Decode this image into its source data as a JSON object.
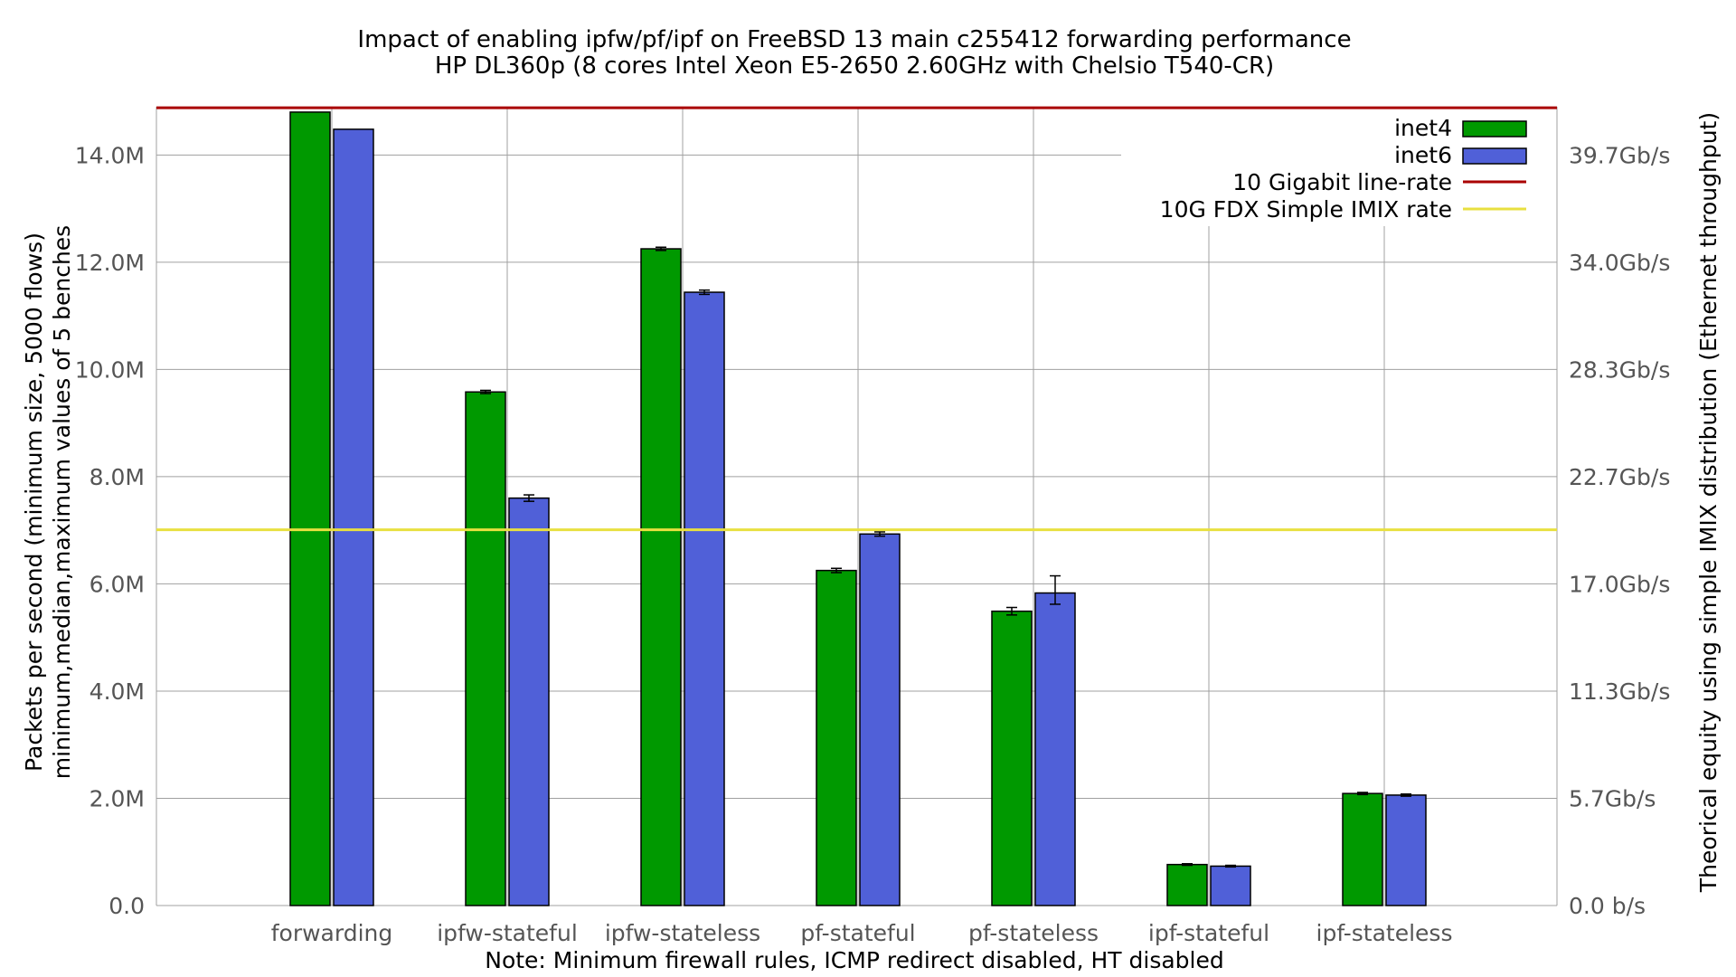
{
  "chart_data": {
    "type": "bar",
    "title": "Impact of enabling ipfw/pf/ipf on FreeBSD 13 main c255412 forwarding performance",
    "subtitle": "HP DL360p (8 cores Intel Xeon E5-2650 2.60GHz with Chelsio T540-CR)",
    "xlabel": "Note: Minimum firewall rules, ICMP redirect disabled, HT disabled",
    "ylabel": "Packets per second (minimum size, 5000 flows)",
    "ylabel2": "minimum,median,maximum values of 5 benches",
    "y2label": "Theorical equity using simple IMIX distribution (Ethernet throughput)",
    "ylim": [
      0,
      14900000
    ],
    "yticks": [
      0,
      2000000,
      4000000,
      6000000,
      8000000,
      10000000,
      12000000,
      14000000
    ],
    "ytick_labels": [
      "0.0",
      "2.0M",
      "4.0M",
      "6.0M",
      "8.0M",
      "10.0M",
      "12.0M",
      "14.0M"
    ],
    "y2tick_labels": [
      "0.0 b/s",
      "5.7Gb/s",
      "11.3Gb/s",
      "17.0Gb/s",
      "22.7Gb/s",
      "28.3Gb/s",
      "34.0Gb/s",
      "39.7Gb/s"
    ],
    "categories": [
      "forwarding",
      "ipfw-stateful",
      "ipfw-stateless",
      "pf-stateful",
      "pf-stateless",
      "ipf-stateful",
      "ipf-stateless"
    ],
    "series": [
      {
        "name": "inet4",
        "color": "#009900",
        "values": [
          14800000,
          9580000,
          12250000,
          6250000,
          5490000,
          765000,
          2090000
        ],
        "min": [
          14800000,
          9550000,
          12220000,
          6210000,
          5420000,
          750000,
          2070000
        ],
        "max": [
          14800000,
          9610000,
          12280000,
          6290000,
          5560000,
          780000,
          2110000
        ]
      },
      {
        "name": "inet6",
        "color": "#5060d8",
        "values": [
          14480000,
          7600000,
          11440000,
          6930000,
          5830000,
          735000,
          2060000
        ],
        "min": [
          14480000,
          7540000,
          11400000,
          6890000,
          5620000,
          720000,
          2040000
        ],
        "max": [
          14480000,
          7660000,
          11480000,
          6970000,
          6150000,
          750000,
          2080000
        ]
      }
    ],
    "reference_lines": [
      {
        "name": "10 Gigabit line-rate",
        "value": 14880000,
        "color": "#aa0000"
      },
      {
        "name": "10G FDX Simple IMIX rate",
        "value": 7010000,
        "color": "#e8e040"
      }
    ],
    "grid": true,
    "legend_position": "top-right"
  }
}
